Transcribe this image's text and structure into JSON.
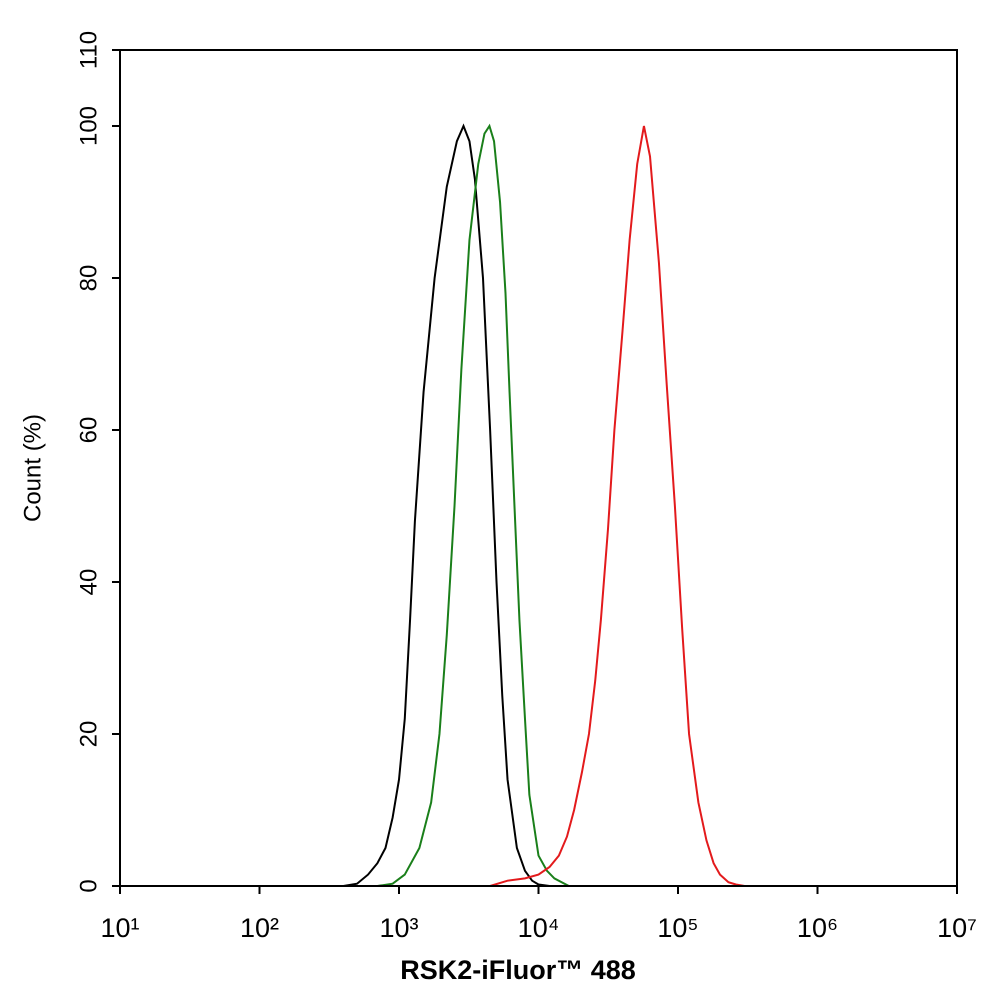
{
  "chart_data": {
    "type": "line",
    "xlabel": "RSK2-iFluor™ 488",
    "ylabel": "Count  (%)",
    "xscale": "log",
    "xlim": [
      10,
      10000000
    ],
    "ylim": [
      0,
      110
    ],
    "xticks": [
      {
        "value": 10,
        "label": "10¹"
      },
      {
        "value": 100,
        "label": "10²"
      },
      {
        "value": 1000,
        "label": "10³"
      },
      {
        "value": 10000,
        "label": "10⁴"
      },
      {
        "value": 100000,
        "label": "10⁵"
      },
      {
        "value": 1000000,
        "label": "10⁶"
      },
      {
        "value": 10000000,
        "label": "10⁷"
      }
    ],
    "yticks": [
      0,
      20,
      40,
      60,
      80,
      100,
      110
    ],
    "series": [
      {
        "color": "#000000",
        "x": [
          200,
          400,
          500,
          600,
          700,
          800,
          900,
          1000,
          1100,
          1200,
          1300,
          1500,
          1800,
          2200,
          2600,
          2900,
          3200,
          3500,
          4000,
          4500,
          5000,
          5500,
          6000,
          7000,
          8000,
          9000,
          10000,
          12000,
          10000000
        ],
        "values": [
          0,
          0,
          0.3,
          1.5,
          3,
          5,
          9,
          14,
          22,
          35,
          48,
          65,
          80,
          92,
          98,
          100,
          98,
          93,
          80,
          60,
          40,
          25,
          14,
          5,
          2,
          0.7,
          0.2,
          0,
          0
        ]
      },
      {
        "color": "#1a7f1a",
        "x": [
          10,
          700,
          900,
          1100,
          1400,
          1700,
          1950,
          2200,
          2500,
          2800,
          3200,
          3700,
          4100,
          4450,
          4800,
          5300,
          5800,
          6200,
          6800,
          7300,
          8000,
          8600,
          10000,
          11500,
          13000,
          16500,
          10000000
        ],
        "values": [
          0,
          0,
          0.3,
          1.5,
          5,
          11,
          20,
          33,
          50,
          68,
          85,
          95,
          99,
          100,
          98,
          90,
          78,
          65,
          48,
          35,
          22,
          12,
          4,
          2,
          1,
          0,
          0
        ]
      },
      {
        "color": "#e31a1c",
        "x": [
          10,
          4500,
          6000,
          8000,
          10000,
          12000,
          14000,
          16000,
          18000,
          20500,
          23000,
          25500,
          28000,
          31500,
          35000,
          40000,
          45000,
          51000,
          57000,
          63000,
          73000,
          83000,
          95000,
          107000,
          120000,
          140000,
          160000,
          180000,
          200000,
          230000,
          260000,
          300000,
          10000000
        ],
        "values": [
          0,
          0,
          0.7,
          1,
          1.5,
          2.5,
          4,
          6.5,
          10,
          15,
          20,
          27,
          35,
          47,
          60,
          73,
          85,
          95,
          100,
          96,
          82,
          66,
          50,
          34,
          20,
          11,
          6,
          3,
          1.5,
          0.5,
          0.2,
          0,
          0
        ]
      }
    ]
  }
}
